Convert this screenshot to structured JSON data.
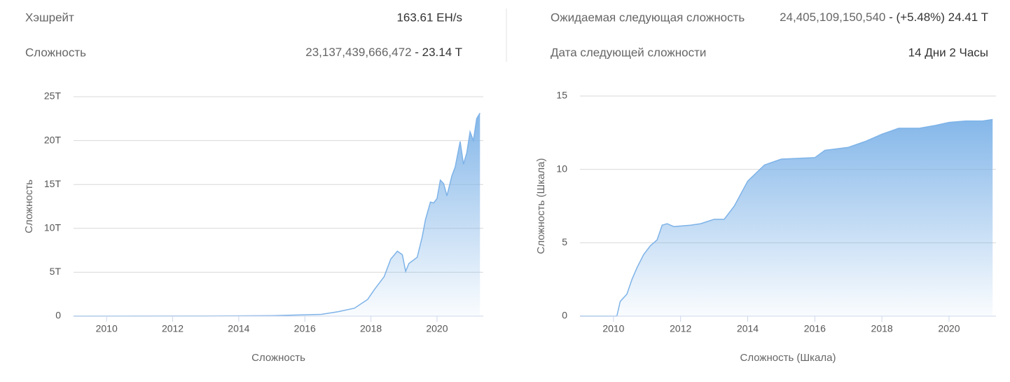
{
  "stats": {
    "hashrate": {
      "label": "Хэшрейт",
      "value": "163.61 EH/s"
    },
    "difficulty": {
      "label": "Сложность",
      "value": "23,137,439,666,472",
      "short": "- 23.14 T"
    },
    "next_difficulty": {
      "label": "Ожидаемая следующая сложность",
      "value": "24,405,109,150,540",
      "short": "- (+5.48%) 24.41 T"
    },
    "next_date": {
      "label": "Дата следующей сложности",
      "value": "14 Дни 2 Часы"
    }
  },
  "chart_data": [
    {
      "type": "area",
      "ylabel": "Сложность",
      "xlabel": "Сложность",
      "color": "#7eb3e8",
      "grid": true,
      "x": [
        2009,
        2013,
        2014,
        2015,
        2016,
        2016.5,
        2017,
        2017.5,
        2017.9,
        2018.1,
        2018.4,
        2018.6,
        2018.8,
        2018.95,
        2019.05,
        2019.15,
        2019.4,
        2019.55,
        2019.65,
        2019.8,
        2019.9,
        2020.0,
        2020.1,
        2020.2,
        2020.3,
        2020.45,
        2020.55,
        2020.7,
        2020.8,
        2020.9,
        2021.0,
        2021.1,
        2021.2,
        2021.3
      ],
      "values": [
        0,
        0.01,
        0.03,
        0.05,
        0.15,
        0.2,
        0.5,
        0.9,
        1.9,
        3.0,
        4.5,
        6.5,
        7.4,
        7.0,
        5.1,
        6.0,
        6.7,
        9.0,
        11.0,
        13.0,
        12.9,
        13.4,
        15.5,
        15.1,
        13.7,
        16.0,
        17.0,
        19.9,
        17.3,
        18.6,
        21.0,
        20.0,
        22.5,
        23.14
      ],
      "xlim": [
        2009,
        2021.4
      ],
      "xticks": [
        2010,
        2012,
        2014,
        2016,
        2018,
        2020
      ],
      "ylim": [
        0,
        25
      ],
      "yticks": [
        0,
        {
          "value": 5,
          "label": "5T"
        },
        {
          "value": 10,
          "label": "10T"
        },
        {
          "value": 15,
          "label": "15T"
        },
        {
          "value": 20,
          "label": "20T"
        },
        {
          "value": 25,
          "label": "25T"
        }
      ]
    },
    {
      "type": "area",
      "ylabel": "Сложность (Шкала)",
      "xlabel": "Сложность (Шкала)",
      "color": "#7eb3e8",
      "grid": true,
      "x": [
        2009,
        2010.1,
        2010.2,
        2010.4,
        2010.55,
        2010.7,
        2010.9,
        2011.1,
        2011.3,
        2011.45,
        2011.6,
        2011.8,
        2012.3,
        2012.6,
        2013,
        2013.3,
        2013.6,
        2014,
        2014.5,
        2015,
        2016,
        2016.3,
        2017,
        2017.5,
        2018,
        2018.5,
        2018.9,
        2019.1,
        2019.6,
        2020,
        2020.5,
        2021,
        2021.3
      ],
      "values": [
        0,
        0,
        1.0,
        1.5,
        2.5,
        3.3,
        4.2,
        4.8,
        5.2,
        6.2,
        6.3,
        6.1,
        6.2,
        6.3,
        6.6,
        6.6,
        7.5,
        9.2,
        10.3,
        10.7,
        10.8,
        11.3,
        11.5,
        11.9,
        12.4,
        12.8,
        12.8,
        12.8,
        13.0,
        13.2,
        13.3,
        13.3,
        13.4
      ],
      "xlim": [
        2009,
        2021.4
      ],
      "xticks": [
        2010,
        2012,
        2014,
        2016,
        2018,
        2020
      ],
      "ylim": [
        0,
        15
      ],
      "yticks": [
        0,
        5,
        10,
        15
      ]
    }
  ]
}
